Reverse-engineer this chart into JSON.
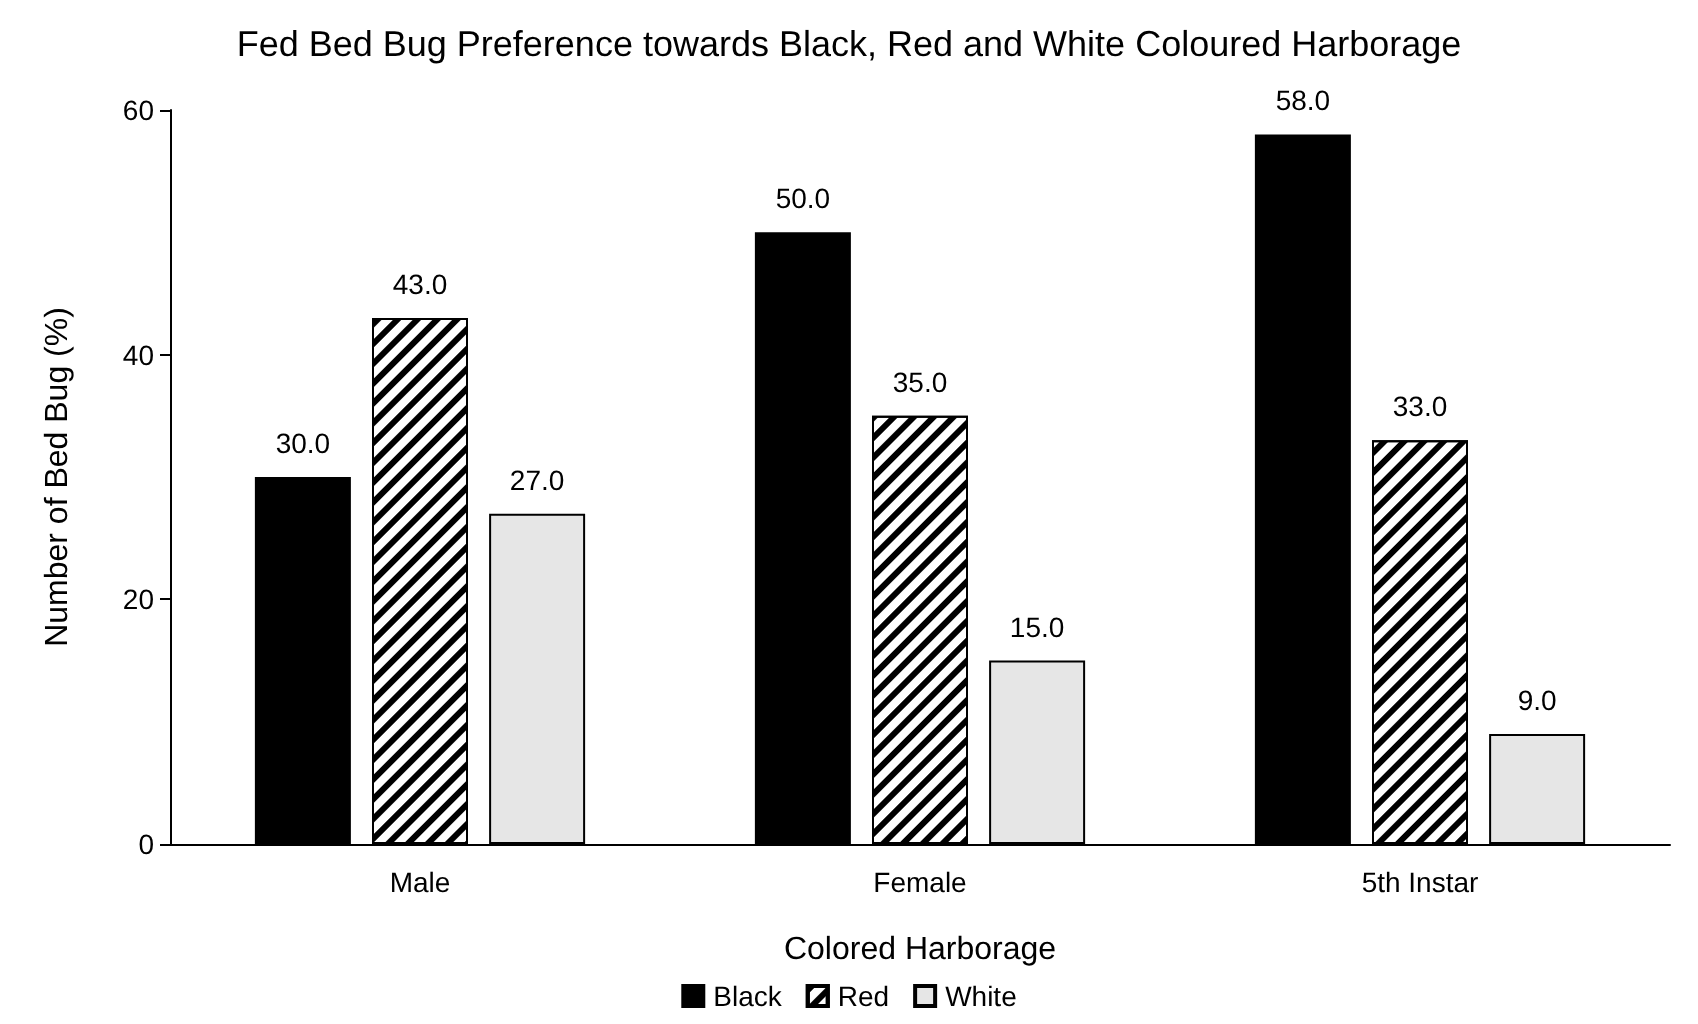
{
  "chart_data": {
    "type": "bar",
    "title": "Fed Bed Bug Preference towards Black, Red and White Coloured Harborage",
    "xlabel": "Colored Harborage",
    "ylabel": "Number of Bed Bug (%)",
    "categories": [
      "Male",
      "Female",
      "5th Instar"
    ],
    "series": [
      {
        "name": "Black",
        "color": "#000000",
        "values": [
          30,
          50,
          58
        ],
        "value_labels": [
          "30.0",
          "50.0",
          "58.0"
        ]
      },
      {
        "name": "Red",
        "color": "#ffffff",
        "values": [
          43,
          35,
          33
        ],
        "value_labels": [
          "43.0",
          "35.0",
          "33.0"
        ]
      },
      {
        "name": "White",
        "color": "#e6e6e6",
        "values": [
          27,
          15,
          9
        ],
        "value_labels": [
          "27.0",
          "15.0",
          "9.0"
        ]
      }
    ],
    "ylim": [
      0,
      60
    ],
    "yticks": [
      0,
      20,
      40,
      60
    ],
    "grid": false,
    "legend": "bottom"
  }
}
